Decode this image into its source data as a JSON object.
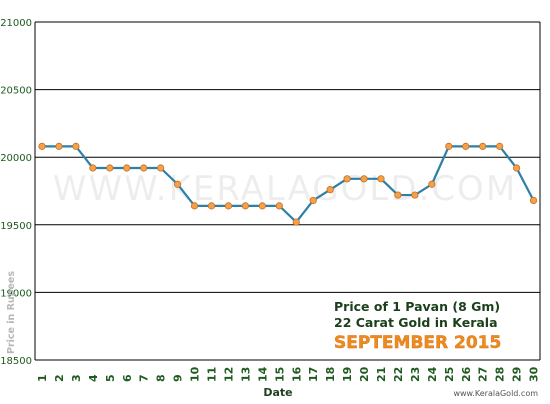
{
  "chart_data": {
    "type": "line",
    "xlabel": "Date",
    "ylabel": "Price in Rupees",
    "ylim": [
      18500,
      21000
    ],
    "y_ticks": [
      18500,
      19000,
      19500,
      20000,
      20500,
      21000
    ],
    "grid": "horizontal",
    "x": [
      "1",
      "2",
      "3",
      "4",
      "5",
      "6",
      "7",
      "8",
      "9",
      "10",
      "11",
      "12",
      "13",
      "14",
      "15",
      "16",
      "17",
      "18",
      "19",
      "20",
      "21",
      "22",
      "23",
      "24",
      "25",
      "26",
      "27",
      "28",
      "29",
      "30"
    ],
    "values": [
      20080,
      20080,
      20080,
      19920,
      19920,
      19920,
      19920,
      19920,
      19800,
      19640,
      19640,
      19640,
      19640,
      19640,
      19640,
      19520,
      19680,
      19760,
      19840,
      19840,
      19840,
      19720,
      19720,
      19800,
      20080,
      20080,
      20080,
      20080,
      19920,
      19680
    ],
    "annotation": {
      "line1": "Price of 1 Pavan (8 Gm)",
      "line2": "22 Carat Gold in Kerala",
      "line3": "SEPTEMBER 2015"
    },
    "watermark": "WWW.KERALAGOLD.COM",
    "footer": "www.KeralaGold.com",
    "colors": {
      "line": "#2c7fa8",
      "marker_fill": "#f5a04a",
      "marker_stroke": "#c8701c",
      "tick_text": "#1f5a1f",
      "month_text": "#f08a1e",
      "annotation_text": "#1a3f1a",
      "grid": "#000000"
    }
  }
}
